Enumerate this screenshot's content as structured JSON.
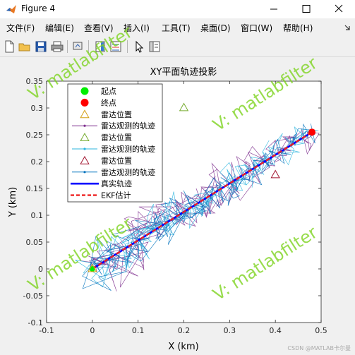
{
  "window": {
    "title": "Figure 4",
    "controls": [
      "minimize",
      "maximize",
      "close"
    ]
  },
  "menus": [
    "文件(F)",
    "编辑(E)",
    "查看(V)",
    "插入(I)",
    "工具(T)",
    "桌面(D)",
    "窗口(W)",
    "帮助(H)"
  ],
  "toolbar": [
    "new-figure-icon",
    "open-icon",
    "save-icon",
    "print-icon",
    "link-icon",
    "colorbar-icon",
    "legend-icon",
    "pointer-icon",
    "property-editor-icon"
  ],
  "colors": {
    "true_track": "#0000ff",
    "ekf": "#ee2222",
    "radar1": "#d4a017",
    "radar2": "#77ac30",
    "radar3": "#a2142f",
    "obs1": "#7e2f8e",
    "obs2": "#2cb5de",
    "obs3": "#0072bd",
    "start": "#00ee00",
    "end": "#ff0000",
    "watermark": "#7ed321"
  },
  "watermark": "V: matlabfilter",
  "footer": "CSDN @MATLAB卡尔曼",
  "chart_data": {
    "type": "line",
    "title": "XY平面轨迹投影",
    "xlabel": "X (km)",
    "ylabel": "Y (km)",
    "xlim": [
      -0.1,
      0.5
    ],
    "ylim": [
      -0.1,
      0.35
    ],
    "xticks": [
      -0.1,
      0,
      0.1,
      0.2,
      0.3,
      0.4,
      0.5
    ],
    "yticks": [
      -0.1,
      -0.05,
      0,
      0.05,
      0.1,
      0.15,
      0.2,
      0.25,
      0.3,
      0.35
    ],
    "grid": false,
    "legend_position": "top-left",
    "legend": [
      "起点",
      "终点",
      "雷达位置",
      "雷达观测的轨迹",
      "雷达位置",
      "雷达观测的轨迹",
      "雷达位置",
      "雷达观测的轨迹",
      "真实轨迹",
      "EKF估计"
    ],
    "start_point": [
      0,
      0
    ],
    "end_point": [
      0.48,
      0.255
    ],
    "radars": [
      {
        "x": 0.0,
        "y": 0.0
      },
      {
        "x": 0.2,
        "y": 0.3
      },
      {
        "x": 0.4,
        "y": 0.175
      }
    ],
    "true_track": {
      "x": [
        0,
        0.48
      ],
      "y": [
        0,
        0.255
      ]
    },
    "ekf_track": {
      "x": [
        0,
        0.48
      ],
      "y": [
        0,
        0.255
      ]
    },
    "observation_spread": {
      "x_noise": 0.05,
      "y_noise": 0.05
    }
  }
}
